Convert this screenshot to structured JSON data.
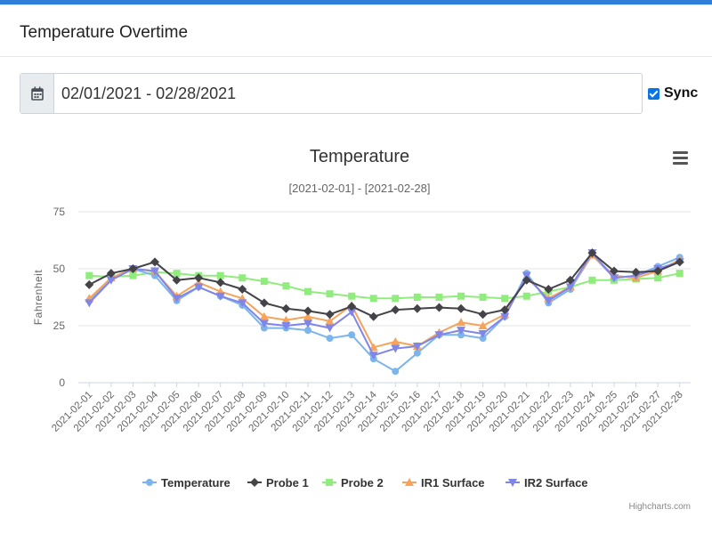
{
  "page": {
    "title": "Temperature Overtime"
  },
  "filters": {
    "date_range": "02/01/2021 - 02/28/2021",
    "sync_label": "Sync",
    "sync_checked": true
  },
  "chart_data": {
    "type": "line",
    "title": "Temperature",
    "subtitle": "[2021-02-01] - [2021-02-28]",
    "xlabel": "",
    "ylabel": "Fahrenheit",
    "ylim": [
      0,
      75
    ],
    "yticks": [
      0,
      25,
      50,
      75
    ],
    "grid": true,
    "legend": "bottom-center",
    "credits": "Highcharts.com",
    "categories": [
      "2021-02-01",
      "2021-02-02",
      "2021-02-03",
      "2021-02-04",
      "2021-02-05",
      "2021-02-06",
      "2021-02-07",
      "2021-02-08",
      "2021-02-09",
      "2021-02-10",
      "2021-02-11",
      "2021-02-12",
      "2021-02-13",
      "2021-02-14",
      "2021-02-15",
      "2021-02-16",
      "2021-02-17",
      "2021-02-18",
      "2021-02-19",
      "2021-02-20",
      "2021-02-21",
      "2021-02-22",
      "2021-02-23",
      "2021-02-24",
      "2021-02-25",
      "2021-02-26",
      "2021-02-27",
      "2021-02-28"
    ],
    "series": [
      {
        "name": "Temperature",
        "color": "#7cb5ec",
        "marker": "circle",
        "values": [
          36,
          46,
          50,
          47,
          36,
          42,
          38,
          34,
          24,
          24,
          23,
          19.5,
          21,
          10.5,
          5,
          13,
          21,
          21,
          19.5,
          29,
          48,
          35,
          41,
          56,
          46,
          47,
          51,
          55
        ]
      },
      {
        "name": "Probe 1",
        "color": "#434348",
        "marker": "diamond",
        "values": [
          43,
          48,
          50,
          53,
          45,
          46,
          44,
          41,
          35,
          32.5,
          31.5,
          30,
          33.5,
          29,
          32,
          32.5,
          33,
          32.5,
          30,
          32,
          45,
          41,
          45,
          57,
          49,
          48.5,
          49,
          53
        ]
      },
      {
        "name": "Probe 2",
        "color": "#90ed7d",
        "marker": "square",
        "values": [
          47,
          46.5,
          47,
          48.5,
          48,
          47,
          47,
          46,
          44.5,
          42.5,
          40,
          39,
          38,
          37,
          37,
          37.5,
          37.5,
          38,
          37.5,
          37,
          38,
          40,
          42,
          45,
          45,
          45.5,
          46,
          48
        ]
      },
      {
        "name": "IR1 Surface",
        "color": "#f7a35c",
        "marker": "triangle",
        "values": [
          37,
          46,
          50,
          49,
          38,
          44,
          40,
          37,
          29,
          27.5,
          29,
          27,
          34,
          15.5,
          18,
          16,
          22,
          26.5,
          25,
          30,
          46,
          37,
          42,
          56,
          47,
          46,
          49,
          54
        ]
      },
      {
        "name": "IR2 Surface",
        "color": "#8085e9",
        "marker": "triangle-down",
        "values": [
          35,
          45,
          50,
          49,
          37,
          42,
          38,
          35,
          26,
          25,
          26,
          24,
          31,
          12,
          15,
          16,
          21,
          23,
          21.5,
          29,
          47,
          36,
          42,
          57,
          46,
          47,
          50,
          53
        ]
      }
    ]
  }
}
